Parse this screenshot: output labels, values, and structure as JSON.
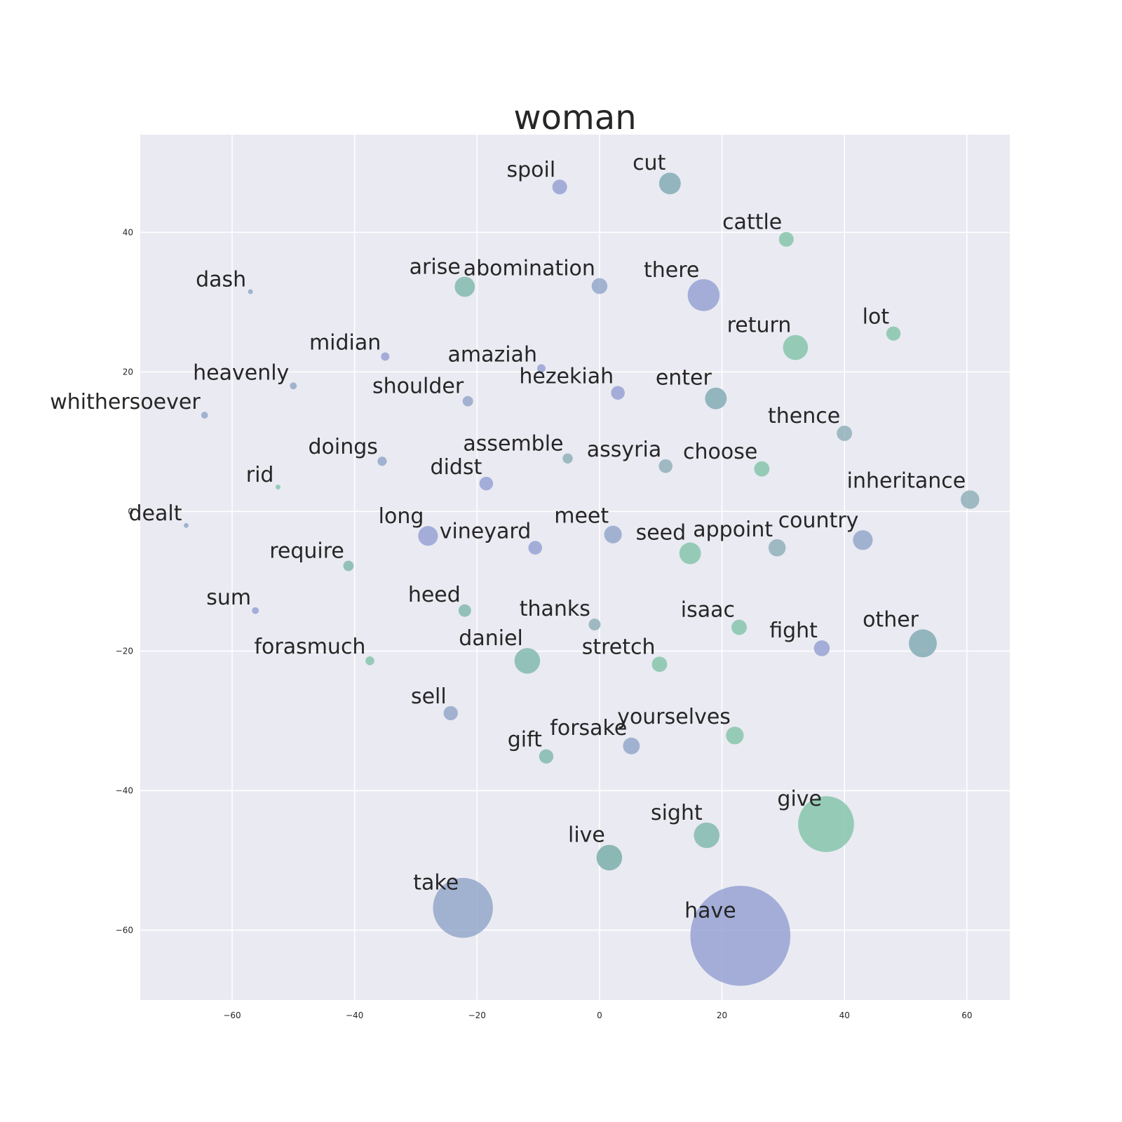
{
  "chart_data": {
    "type": "scatter",
    "title": "woman",
    "xlabel": "",
    "ylabel": "",
    "xlim": [
      -75,
      67
    ],
    "ylim": [
      -70,
      54
    ],
    "x_ticks": [
      "−60",
      "−40",
      "−20",
      "0",
      "20",
      "40",
      "60"
    ],
    "x_tick_values": [
      -60,
      -40,
      -20,
      0,
      20,
      40,
      60
    ],
    "y_ticks": [
      "40",
      "20",
      "0",
      "−20",
      "−40",
      "−60"
    ],
    "y_tick_values": [
      40,
      20,
      0,
      -20,
      -40,
      -60
    ],
    "grid": true,
    "colors": {
      "background": "#eaeaf2",
      "grid": "#ffffff",
      "palette": [
        "#8e9bd1",
        "#7cc1a5",
        "#88aab5",
        "#8ca2c6",
        "#9cb7c2",
        "#78b5a6"
      ]
    },
    "points": [
      {
        "label": "spoil",
        "x": -6.5,
        "y": 46.5,
        "size": 140,
        "color": "#8e9bd1"
      },
      {
        "label": "cut",
        "x": 11.5,
        "y": 47.0,
        "size": 300,
        "color": "#78a5b0"
      },
      {
        "label": "cattle",
        "x": 30.5,
        "y": 39.0,
        "size": 140,
        "color": "#7cc1a5"
      },
      {
        "label": "dash",
        "x": -57.0,
        "y": 31.5,
        "size": 15,
        "color": "#8ca2c6"
      },
      {
        "label": "arise",
        "x": -22.0,
        "y": 32.2,
        "size": 260,
        "color": "#78b5a6"
      },
      {
        "label": "abomination",
        "x": 0.0,
        "y": 32.3,
        "size": 160,
        "color": "#8ca2c6"
      },
      {
        "label": "there",
        "x": 17.0,
        "y": 31.0,
        "size": 650,
        "color": "#8e9bd1"
      },
      {
        "label": "lot",
        "x": 48.0,
        "y": 25.5,
        "size": 130,
        "color": "#7cc1a5"
      },
      {
        "label": "return",
        "x": 32.0,
        "y": 23.5,
        "size": 400,
        "color": "#7cc1a5"
      },
      {
        "label": "midian",
        "x": -35.0,
        "y": 22.2,
        "size": 45,
        "color": "#8e9bd1"
      },
      {
        "label": "amaziah",
        "x": -9.5,
        "y": 20.5,
        "size": 45,
        "color": "#8e9bd1"
      },
      {
        "label": "heavenly",
        "x": -50.0,
        "y": 18.0,
        "size": 30,
        "color": "#8ca2c6"
      },
      {
        "label": "shoulder",
        "x": -21.5,
        "y": 15.8,
        "size": 70,
        "color": "#8ca2c6"
      },
      {
        "label": "hezekiah",
        "x": 3.0,
        "y": 17.0,
        "size": 120,
        "color": "#8e9bd1"
      },
      {
        "label": "enter",
        "x": 19.0,
        "y": 16.2,
        "size": 300,
        "color": "#78a5b0"
      },
      {
        "label": "whithersoever",
        "x": -64.5,
        "y": 13.8,
        "size": 30,
        "color": "#8ca2c6"
      },
      {
        "label": "thence",
        "x": 40.0,
        "y": 11.2,
        "size": 150,
        "color": "#88aab5"
      },
      {
        "label": "doings",
        "x": -35.5,
        "y": 7.2,
        "size": 55,
        "color": "#8ca2c6"
      },
      {
        "label": "assemble",
        "x": -5.2,
        "y": 7.6,
        "size": 65,
        "color": "#88aab5"
      },
      {
        "label": "assyria",
        "x": 10.8,
        "y": 6.5,
        "size": 120,
        "color": "#88aab5"
      },
      {
        "label": "choose",
        "x": 26.5,
        "y": 6.1,
        "size": 150,
        "color": "#7cc1a5"
      },
      {
        "label": "rid",
        "x": -52.5,
        "y": 3.5,
        "size": 15,
        "color": "#7cc1a5"
      },
      {
        "label": "didst",
        "x": -18.5,
        "y": 4.0,
        "size": 120,
        "color": "#8e9bd1"
      },
      {
        "label": "inheritance",
        "x": 60.5,
        "y": 1.7,
        "size": 220,
        "color": "#88aab5"
      },
      {
        "label": "dealt",
        "x": -67.5,
        "y": -2.0,
        "size": 15,
        "color": "#8ca2c6"
      },
      {
        "label": "long",
        "x": -28.0,
        "y": -3.5,
        "size": 250,
        "color": "#8e9bd1"
      },
      {
        "label": "vineyard",
        "x": -10.5,
        "y": -5.2,
        "size": 120,
        "color": "#8e9bd1"
      },
      {
        "label": "meet",
        "x": 2.2,
        "y": -3.3,
        "size": 200,
        "color": "#8ca2c6"
      },
      {
        "label": "seed",
        "x": 14.8,
        "y": -6.0,
        "size": 300,
        "color": "#7cc1a5"
      },
      {
        "label": "appoint",
        "x": 29.0,
        "y": -5.2,
        "size": 190,
        "color": "#88aab5"
      },
      {
        "label": "country",
        "x": 43.0,
        "y": -4.1,
        "size": 250,
        "color": "#8ca2c6"
      },
      {
        "label": "require",
        "x": -41.0,
        "y": -7.8,
        "size": 70,
        "color": "#78b5a6"
      },
      {
        "label": "sum",
        "x": -56.2,
        "y": -14.2,
        "size": 30,
        "color": "#8e9bd1"
      },
      {
        "label": "heed",
        "x": -22.0,
        "y": -14.2,
        "size": 100,
        "color": "#78b5a6"
      },
      {
        "label": "thanks",
        "x": -0.8,
        "y": -16.2,
        "size": 90,
        "color": "#88aab5"
      },
      {
        "label": "isaac",
        "x": 22.8,
        "y": -16.6,
        "size": 150,
        "color": "#7cc1a5"
      },
      {
        "label": "fight",
        "x": 36.3,
        "y": -19.6,
        "size": 160,
        "color": "#8e9bd1"
      },
      {
        "label": "other",
        "x": 52.8,
        "y": -18.9,
        "size": 500,
        "color": "#78a5b0"
      },
      {
        "label": "forasmuch",
        "x": -37.5,
        "y": -21.4,
        "size": 50,
        "color": "#7cc1a5"
      },
      {
        "label": "daniel",
        "x": -11.8,
        "y": -21.4,
        "size": 420,
        "color": "#78b5a6"
      },
      {
        "label": "stretch",
        "x": 9.8,
        "y": -21.9,
        "size": 150,
        "color": "#7cc1a5"
      },
      {
        "label": "sell",
        "x": -24.3,
        "y": -28.9,
        "size": 130,
        "color": "#8ca2c6"
      },
      {
        "label": "yourselves",
        "x": 22.1,
        "y": -32.1,
        "size": 200,
        "color": "#7cc1a5"
      },
      {
        "label": "forsake",
        "x": 5.2,
        "y": -33.6,
        "size": 180,
        "color": "#8ca2c6"
      },
      {
        "label": "gift",
        "x": -8.7,
        "y": -35.1,
        "size": 130,
        "color": "#78b5a6"
      },
      {
        "label": "give",
        "x": 37.0,
        "y": -44.8,
        "size": 2000,
        "color": "#7cc1a5"
      },
      {
        "label": "sight",
        "x": 17.5,
        "y": -46.4,
        "size": 420,
        "color": "#78b5a6"
      },
      {
        "label": "live",
        "x": 1.6,
        "y": -49.6,
        "size": 420,
        "color": "#6fa8a3"
      },
      {
        "label": "take",
        "x": -22.3,
        "y": -56.8,
        "size": 2300,
        "color": "#8ca2c6"
      },
      {
        "label": "have",
        "x": 23.0,
        "y": -60.8,
        "size": 6400,
        "color": "#8e9bd1"
      }
    ]
  }
}
